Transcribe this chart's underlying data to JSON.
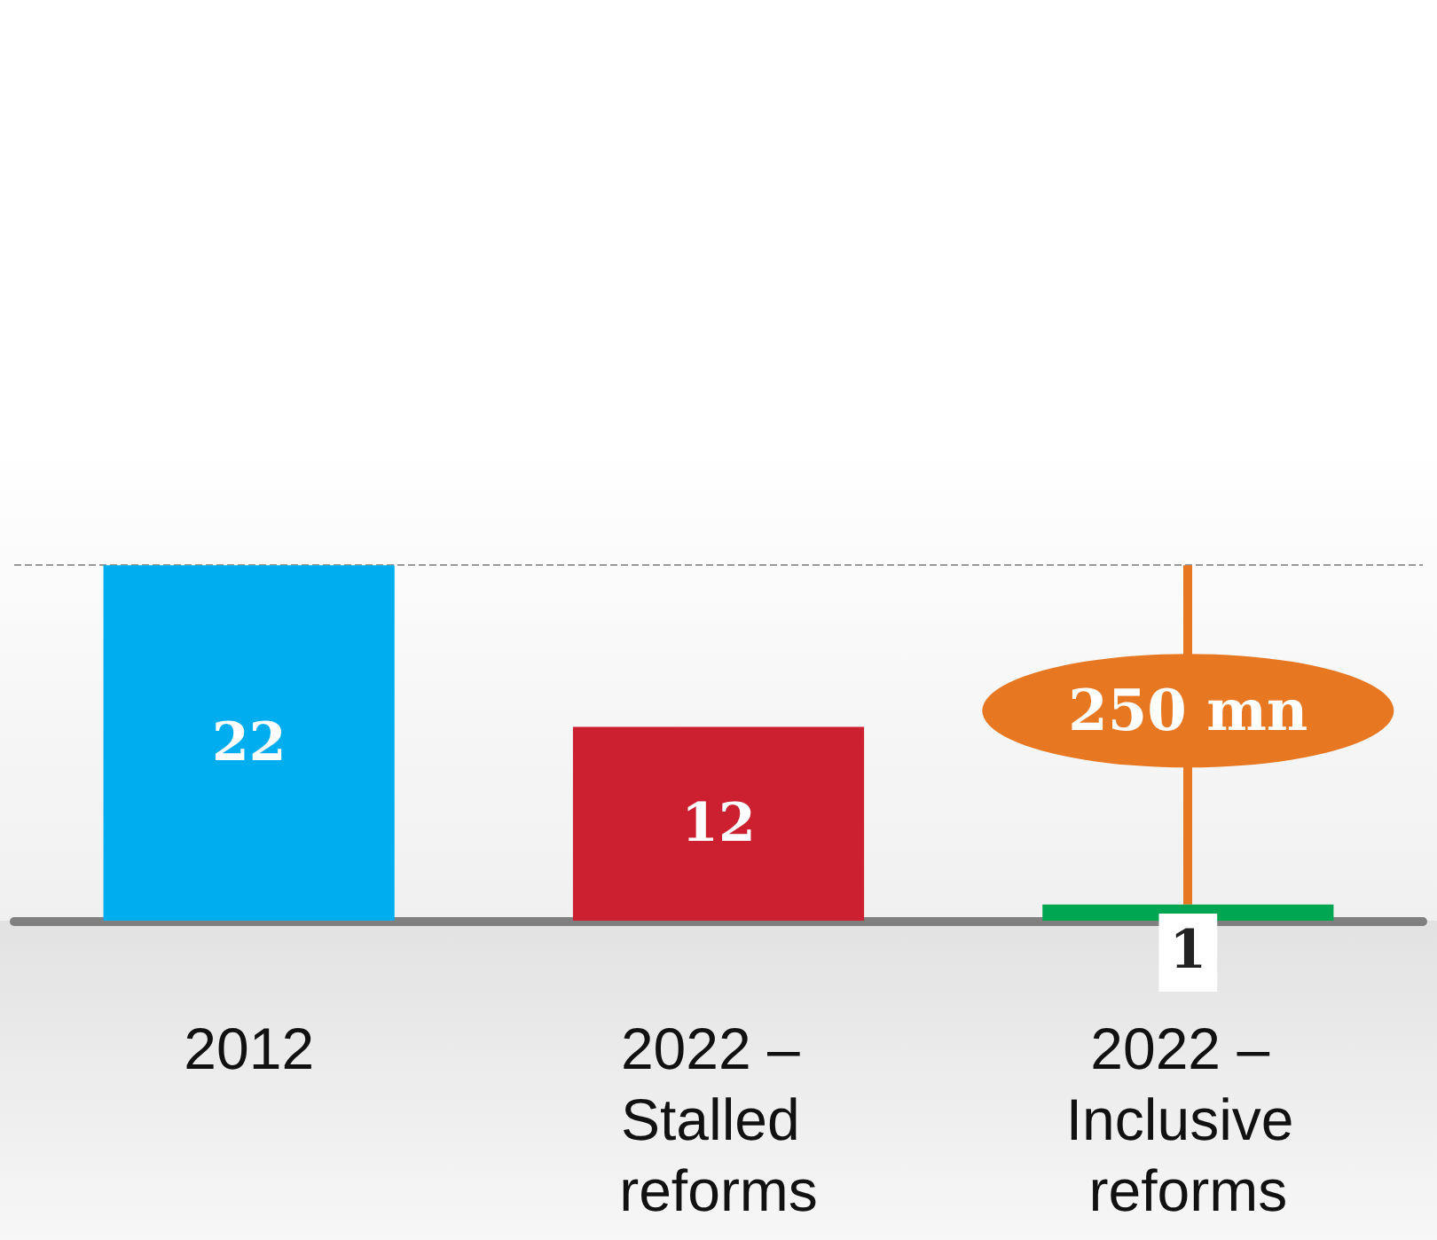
{
  "chart_data": {
    "type": "bar",
    "categories": [
      "2012",
      "2022 – Stalled reforms",
      "2022 – Inclusive reforms"
    ],
    "values": [
      22,
      12,
      1
    ],
    "colors": [
      "#00aeef",
      "#cc1f2f",
      "#00a651"
    ],
    "data_labels": true,
    "ylim": [
      0,
      57
    ],
    "tick_labels": "x",
    "grid": false,
    "ref_lines": [
      {
        "axis": "y",
        "value": 22,
        "color": "#999999",
        "line_style": "dashed"
      }
    ],
    "annotations": [
      "250 mn"
    ]
  }
}
